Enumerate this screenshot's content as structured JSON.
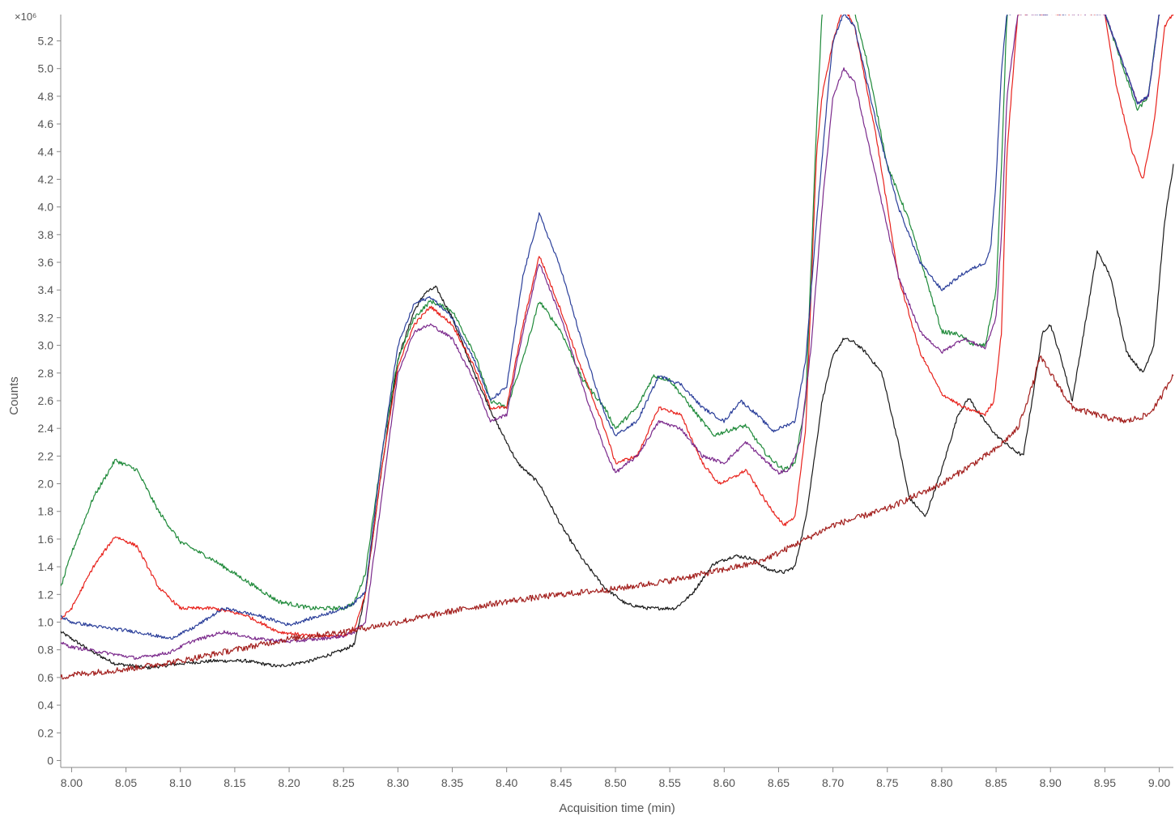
{
  "chart_data": {
    "type": "line",
    "xlabel": "Acquisition time (min)",
    "ylabel": "Counts",
    "y_multiplier": "×10⁶",
    "xlim": [
      7.99,
      9.013
    ],
    "ylim": [
      -0.05,
      5.32
    ],
    "x_ticks": [
      "8.00",
      "8.05",
      "8.10",
      "8.15",
      "8.20",
      "8.25",
      "8.30",
      "8.35",
      "8.40",
      "8.45",
      "8.50",
      "8.55",
      "8.60",
      "8.65",
      "8.70",
      "8.75",
      "8.80",
      "8.85",
      "8.90",
      "8.95",
      "9.00"
    ],
    "y_ticks": [
      "0",
      "0.2",
      "0.4",
      "0.6",
      "0.8",
      "1.0",
      "1.2",
      "1.4",
      "1.6",
      "1.8",
      "2.0",
      "2.2",
      "2.4",
      "2.6",
      "2.8",
      "3.0",
      "3.2",
      "3.4",
      "3.6",
      "3.8",
      "4.0",
      "4.2",
      "4.4",
      "4.6",
      "4.8",
      "5.0",
      "5.2"
    ],
    "grid": false,
    "series": [
      {
        "color": "#1a1a1a",
        "noise": 0.012,
        "x": [
          7.99,
          8.0,
          8.02,
          8.04,
          8.07,
          8.1,
          8.13,
          8.16,
          8.19,
          8.22,
          8.25,
          8.26,
          8.27,
          8.285,
          8.3,
          8.315,
          8.325,
          8.335,
          8.35,
          8.37,
          8.39,
          8.41,
          8.43,
          8.45,
          8.47,
          8.49,
          8.51,
          8.53,
          8.555,
          8.57,
          8.59,
          8.61,
          8.625,
          8.64,
          8.655,
          8.665,
          8.675,
          8.685,
          8.69,
          8.7,
          8.71,
          8.72,
          8.73,
          8.745,
          8.76,
          8.77,
          8.785,
          8.8,
          8.815,
          8.825,
          8.835,
          8.85,
          8.865,
          8.875,
          8.885,
          8.893,
          8.9,
          8.91,
          8.92,
          8.935,
          8.943,
          8.955,
          8.97,
          8.985,
          8.995,
          9.005,
          9.013
        ],
        "y": [
          0.93,
          0.88,
          0.78,
          0.7,
          0.67,
          0.7,
          0.72,
          0.72,
          0.68,
          0.72,
          0.8,
          0.84,
          1.2,
          2.1,
          2.9,
          3.25,
          3.38,
          3.42,
          3.2,
          2.8,
          2.45,
          2.15,
          2.0,
          1.7,
          1.45,
          1.25,
          1.13,
          1.1,
          1.1,
          1.2,
          1.42,
          1.48,
          1.46,
          1.38,
          1.36,
          1.4,
          1.75,
          2.3,
          2.6,
          2.92,
          3.05,
          3.02,
          2.95,
          2.8,
          2.3,
          1.9,
          1.76,
          2.1,
          2.5,
          2.62,
          2.5,
          2.35,
          2.25,
          2.2,
          2.7,
          3.1,
          3.15,
          2.9,
          2.6,
          3.3,
          3.68,
          3.5,
          2.95,
          2.8,
          3.0,
          3.9,
          4.3
        ]
      },
      {
        "color": "#1f8a3a",
        "noise": 0.015,
        "x": [
          7.99,
          8.0,
          8.02,
          8.04,
          8.06,
          8.08,
          8.1,
          8.13,
          8.16,
          8.19,
          8.22,
          8.25,
          8.26,
          8.27,
          8.285,
          8.3,
          8.315,
          8.33,
          8.35,
          8.37,
          8.385,
          8.4,
          8.415,
          8.43,
          8.45,
          8.47,
          8.49,
          8.5,
          8.52,
          8.535,
          8.55,
          8.57,
          8.59,
          8.61,
          8.62,
          8.64,
          8.655,
          8.665,
          8.675,
          8.68,
          8.685,
          8.69,
          8.7,
          8.72,
          8.73,
          8.75,
          8.77,
          8.8,
          8.815,
          8.83,
          8.84,
          8.85,
          8.855,
          8.86,
          8.87,
          8.95,
          8.98,
          8.99,
          9.0,
          9.013
        ],
        "y": [
          1.25,
          1.5,
          1.9,
          2.17,
          2.1,
          1.8,
          1.58,
          1.45,
          1.3,
          1.15,
          1.1,
          1.1,
          1.14,
          1.35,
          2.2,
          2.9,
          3.2,
          3.32,
          3.25,
          2.95,
          2.6,
          2.55,
          2.9,
          3.32,
          3.1,
          2.75,
          2.55,
          2.4,
          2.55,
          2.78,
          2.75,
          2.55,
          2.35,
          2.4,
          2.42,
          2.2,
          2.1,
          2.15,
          2.6,
          3.6,
          4.6,
          5.4,
          5.6,
          5.4,
          5.1,
          4.3,
          3.9,
          3.1,
          3.08,
          3.0,
          3.0,
          3.4,
          4.3,
          5.4,
          5.6,
          5.4,
          4.7,
          4.8,
          5.4,
          5.6
        ]
      },
      {
        "color": "#e8221c",
        "noise": 0.012,
        "x": [
          7.99,
          8.0,
          8.02,
          8.04,
          8.06,
          8.08,
          8.1,
          8.13,
          8.16,
          8.19,
          8.22,
          8.25,
          8.26,
          8.27,
          8.285,
          8.3,
          8.315,
          8.33,
          8.35,
          8.37,
          8.385,
          8.4,
          8.415,
          8.43,
          8.45,
          8.47,
          8.49,
          8.5,
          8.52,
          8.54,
          8.56,
          8.58,
          8.595,
          8.61,
          8.62,
          8.64,
          8.655,
          8.665,
          8.675,
          8.68,
          8.685,
          8.69,
          8.695,
          8.7,
          8.71,
          8.72,
          8.74,
          8.76,
          8.78,
          8.8,
          8.82,
          8.84,
          8.848,
          8.855,
          8.86,
          8.87,
          8.95,
          8.96,
          8.975,
          8.985,
          8.995,
          9.005,
          9.013
        ],
        "y": [
          1.02,
          1.1,
          1.4,
          1.62,
          1.55,
          1.25,
          1.1,
          1.1,
          1.05,
          0.93,
          0.9,
          0.9,
          0.95,
          1.2,
          2.1,
          2.85,
          3.15,
          3.28,
          3.15,
          2.85,
          2.55,
          2.55,
          3.15,
          3.65,
          3.25,
          2.8,
          2.4,
          2.15,
          2.2,
          2.55,
          2.5,
          2.15,
          2.0,
          2.05,
          2.1,
          1.85,
          1.7,
          1.75,
          2.4,
          3.4,
          4.4,
          4.8,
          5.0,
          5.2,
          5.45,
          5.3,
          4.5,
          3.5,
          2.95,
          2.65,
          2.55,
          2.5,
          2.6,
          3.1,
          4.4,
          5.4,
          5.4,
          4.9,
          4.4,
          4.2,
          4.6,
          5.3,
          5.4
        ]
      },
      {
        "color": "#7b2a8c",
        "noise": 0.012,
        "x": [
          7.99,
          8.0,
          8.03,
          8.06,
          8.09,
          8.11,
          8.14,
          8.17,
          8.2,
          8.23,
          8.25,
          8.26,
          8.27,
          8.285,
          8.3,
          8.315,
          8.33,
          8.35,
          8.37,
          8.385,
          8.4,
          8.415,
          8.43,
          8.45,
          8.47,
          8.49,
          8.5,
          8.52,
          8.54,
          8.56,
          8.58,
          8.6,
          8.62,
          8.64,
          8.65,
          8.66,
          8.67,
          8.68,
          8.69,
          8.7,
          8.71,
          8.72,
          8.74,
          8.76,
          8.78,
          8.8,
          8.82,
          8.84,
          8.85,
          8.855,
          8.86,
          8.87,
          8.95,
          8.98,
          8.99,
          9.0,
          9.013
        ],
        "y": [
          0.85,
          0.82,
          0.78,
          0.74,
          0.78,
          0.86,
          0.93,
          0.88,
          0.86,
          0.88,
          0.9,
          0.93,
          1.0,
          1.9,
          2.8,
          3.1,
          3.15,
          3.05,
          2.75,
          2.45,
          2.5,
          3.1,
          3.6,
          3.2,
          2.7,
          2.25,
          2.08,
          2.2,
          2.45,
          2.4,
          2.2,
          2.15,
          2.3,
          2.15,
          2.08,
          2.1,
          2.3,
          3.0,
          4.0,
          4.8,
          5.0,
          4.9,
          4.2,
          3.5,
          3.1,
          2.95,
          3.05,
          2.98,
          3.2,
          3.8,
          4.8,
          5.4,
          5.4,
          4.75,
          4.8,
          5.4,
          5.6
        ]
      },
      {
        "color": "#2b3f9a",
        "noise": 0.012,
        "x": [
          7.99,
          8.0,
          8.03,
          8.06,
          8.09,
          8.11,
          8.14,
          8.17,
          8.2,
          8.23,
          8.25,
          8.26,
          8.27,
          8.285,
          8.3,
          8.315,
          8.33,
          8.35,
          8.37,
          8.385,
          8.4,
          8.415,
          8.43,
          8.45,
          8.47,
          8.49,
          8.5,
          8.52,
          8.54,
          8.56,
          8.58,
          8.6,
          8.615,
          8.63,
          8.645,
          8.665,
          8.675,
          8.685,
          8.695,
          8.7,
          8.71,
          8.72,
          8.74,
          8.76,
          8.78,
          8.8,
          8.82,
          8.84,
          8.845,
          8.85,
          8.855,
          8.86,
          8.95,
          8.98,
          8.99,
          9.0,
          9.013
        ],
        "y": [
          1.04,
          1.0,
          0.96,
          0.93,
          0.88,
          0.95,
          1.1,
          1.05,
          0.98,
          1.05,
          1.1,
          1.14,
          1.22,
          2.2,
          3.0,
          3.3,
          3.35,
          3.2,
          2.9,
          2.6,
          2.7,
          3.5,
          3.95,
          3.55,
          3.0,
          2.5,
          2.35,
          2.45,
          2.78,
          2.72,
          2.55,
          2.45,
          2.6,
          2.5,
          2.38,
          2.45,
          2.9,
          3.9,
          4.8,
          5.2,
          5.4,
          5.3,
          4.6,
          4.0,
          3.6,
          3.4,
          3.52,
          3.6,
          3.7,
          4.2,
          5.0,
          5.4,
          5.4,
          4.75,
          4.8,
          5.4,
          5.6
        ]
      },
      {
        "color": "#a3201e",
        "noise": 0.022,
        "x": [
          7.99,
          8.0,
          8.05,
          8.1,
          8.15,
          8.2,
          8.25,
          8.3,
          8.35,
          8.4,
          8.45,
          8.5,
          8.55,
          8.6,
          8.63,
          8.65,
          8.7,
          8.75,
          8.8,
          8.85,
          8.87,
          8.885,
          8.89,
          8.9,
          8.92,
          8.95,
          8.97,
          8.99,
          9.0,
          9.013
        ],
        "y": [
          0.6,
          0.62,
          0.66,
          0.72,
          0.8,
          0.88,
          0.93,
          1.0,
          1.08,
          1.15,
          1.2,
          1.24,
          1.3,
          1.38,
          1.43,
          1.5,
          1.7,
          1.82,
          2.0,
          2.25,
          2.4,
          2.75,
          2.92,
          2.8,
          2.55,
          2.48,
          2.45,
          2.5,
          2.6,
          2.8
        ]
      }
    ]
  }
}
